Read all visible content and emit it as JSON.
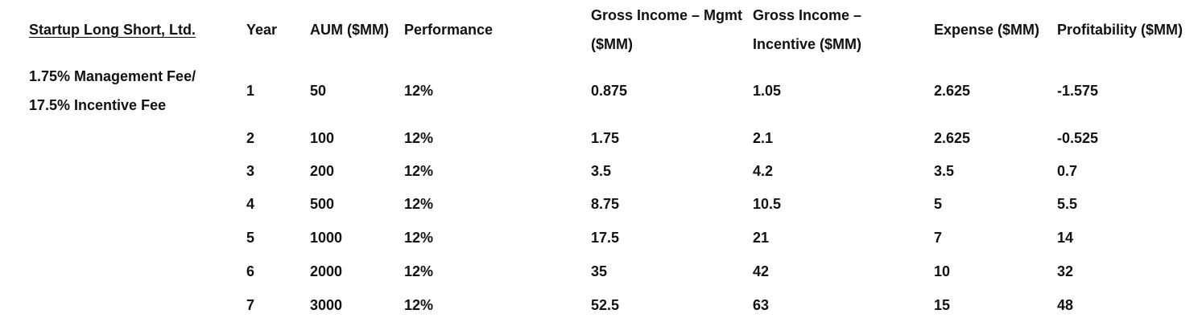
{
  "firm": {
    "name": "Startup Long Short, Ltd.",
    "fee_line_1": "1.75% Management Fee/",
    "fee_line_2": "17.5% Incentive Fee"
  },
  "headers": {
    "year": "Year",
    "aum": "AUM ($MM)",
    "performance": "Performance",
    "gross_mgmt_line1": "Gross Income – Mgmt",
    "gross_mgmt_line2": "($MM)",
    "gross_incentive_line1": "Gross Income –",
    "gross_incentive_line2": "Incentive ($MM)",
    "expense": "Expense ($MM)",
    "profitability": "Profitability ($MM)"
  },
  "rows": [
    {
      "year": "1",
      "aum": "50",
      "performance": "12%",
      "gross_mgmt": "0.875",
      "gross_incentive": "1.05",
      "expense": "2.625",
      "profitability": "-1.575"
    },
    {
      "year": "2",
      "aum": "100",
      "performance": "12%",
      "gross_mgmt": "1.75",
      "gross_incentive": "2.1",
      "expense": "2.625",
      "profitability": "-0.525"
    },
    {
      "year": "3",
      "aum": "200",
      "performance": "12%",
      "gross_mgmt": "3.5",
      "gross_incentive": "4.2",
      "expense": "3.5",
      "profitability": "0.7"
    },
    {
      "year": "4",
      "aum": "500",
      "performance": "12%",
      "gross_mgmt": "8.75",
      "gross_incentive": "10.5",
      "expense": "5",
      "profitability": "5.5"
    },
    {
      "year": "5",
      "aum": "1000",
      "performance": "12%",
      "gross_mgmt": "17.5",
      "gross_incentive": "21",
      "expense": "7",
      "profitability": "14"
    },
    {
      "year": "6",
      "aum": "2000",
      "performance": "12%",
      "gross_mgmt": "35",
      "gross_incentive": "42",
      "expense": "10",
      "profitability": "32"
    },
    {
      "year": "7",
      "aum": "3000",
      "performance": "12%",
      "gross_mgmt": "52.5",
      "gross_incentive": "63",
      "expense": "15",
      "profitability": "48"
    }
  ]
}
